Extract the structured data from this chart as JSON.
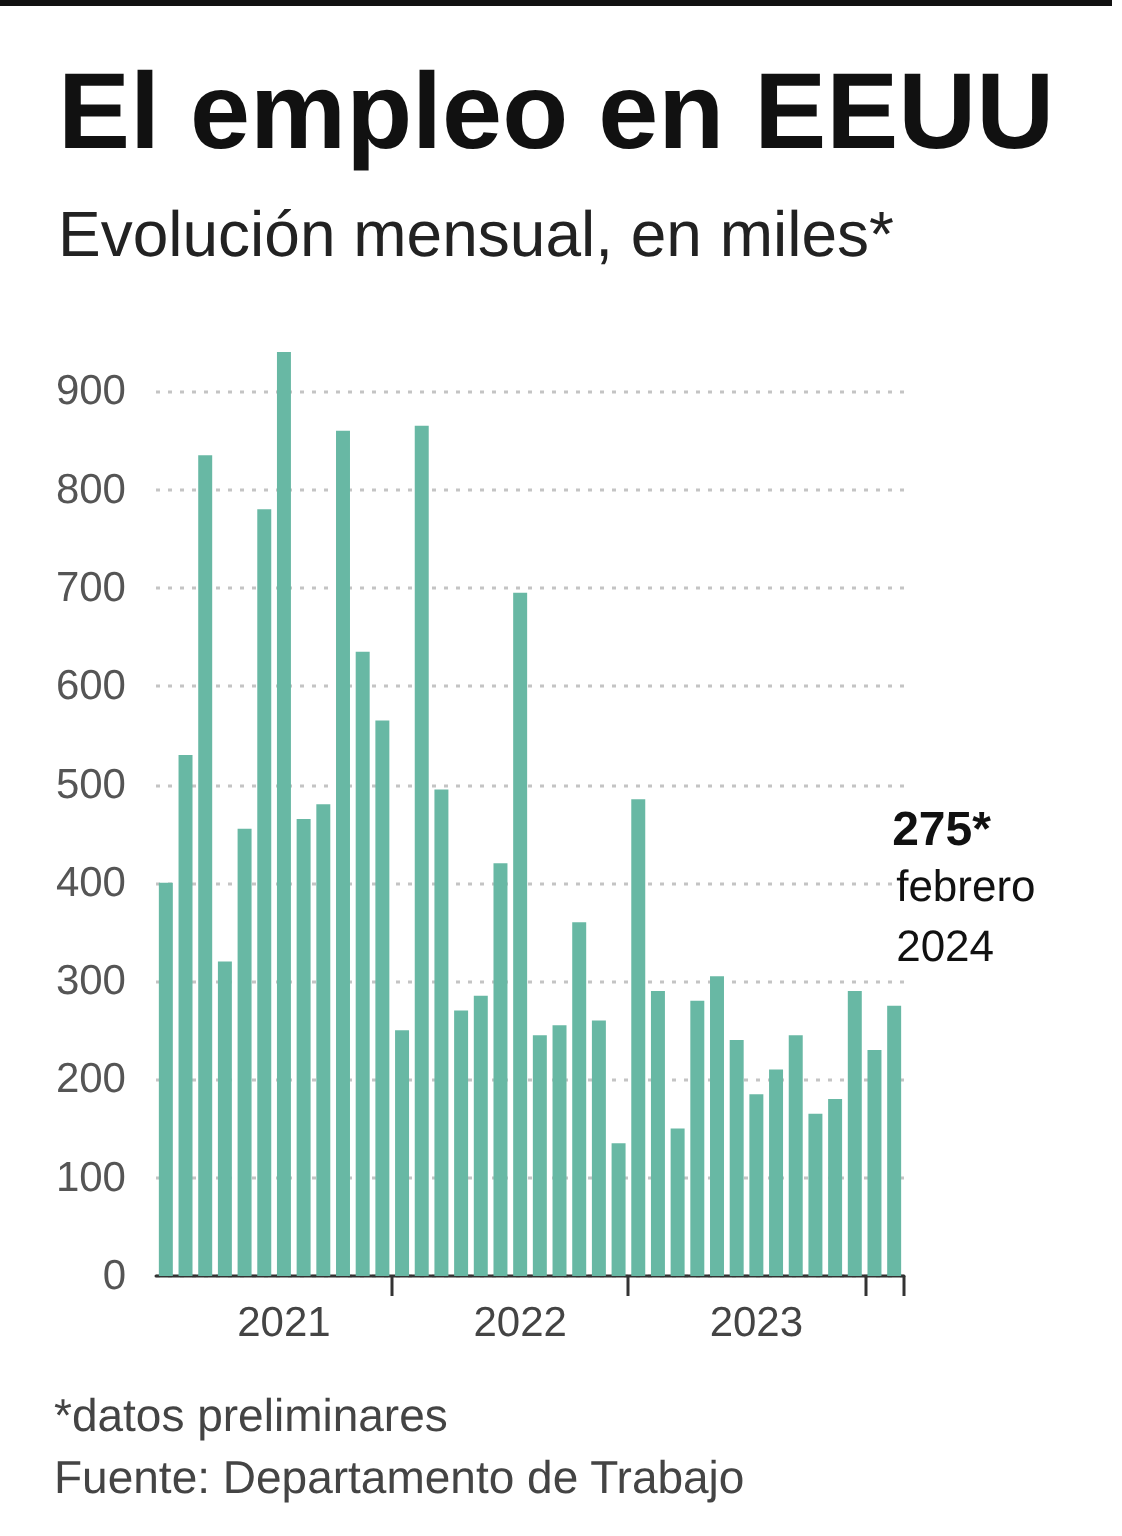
{
  "chart_data": {
    "type": "bar",
    "title": "El empleo en EEUU",
    "subtitle": "Evolución mensual, en miles*",
    "categories": [
      null,
      null,
      null,
      null,
      null,
      null,
      "2021",
      null,
      null,
      null,
      null,
      null,
      null,
      null,
      null,
      null,
      null,
      null,
      "2022",
      null,
      null,
      null,
      null,
      null,
      null,
      null,
      null,
      null,
      null,
      null,
      "2023",
      null,
      null,
      null,
      null,
      null,
      null,
      null
    ],
    "values": [
      400,
      530,
      835,
      320,
      455,
      780,
      940,
      465,
      480,
      860,
      635,
      565,
      250,
      865,
      495,
      270,
      285,
      420,
      695,
      245,
      255,
      360,
      260,
      135,
      485,
      290,
      150,
      280,
      305,
      240,
      185,
      210,
      245,
      165,
      180,
      290,
      230,
      275
    ],
    "color": "#68b8a4",
    "value_labels": [
      null,
      null,
      null,
      null,
      null,
      null,
      null,
      null,
      null,
      null,
      null,
      null,
      null,
      null,
      null,
      null,
      null,
      null,
      null,
      null,
      null,
      null,
      null,
      null,
      null,
      null,
      null,
      null,
      null,
      null,
      null,
      null,
      null,
      null,
      null,
      null,
      null,
      "275*"
    ],
    "ylim": [
      0,
      940
    ],
    "yticks": [
      0,
      100,
      200,
      300,
      400,
      500,
      600,
      700,
      800,
      900
    ],
    "grid": "y",
    "annotations": [
      "febrero 2024",
      "*datos preliminares",
      "Fuente: Departamento de Trabajo"
    ]
  }
}
